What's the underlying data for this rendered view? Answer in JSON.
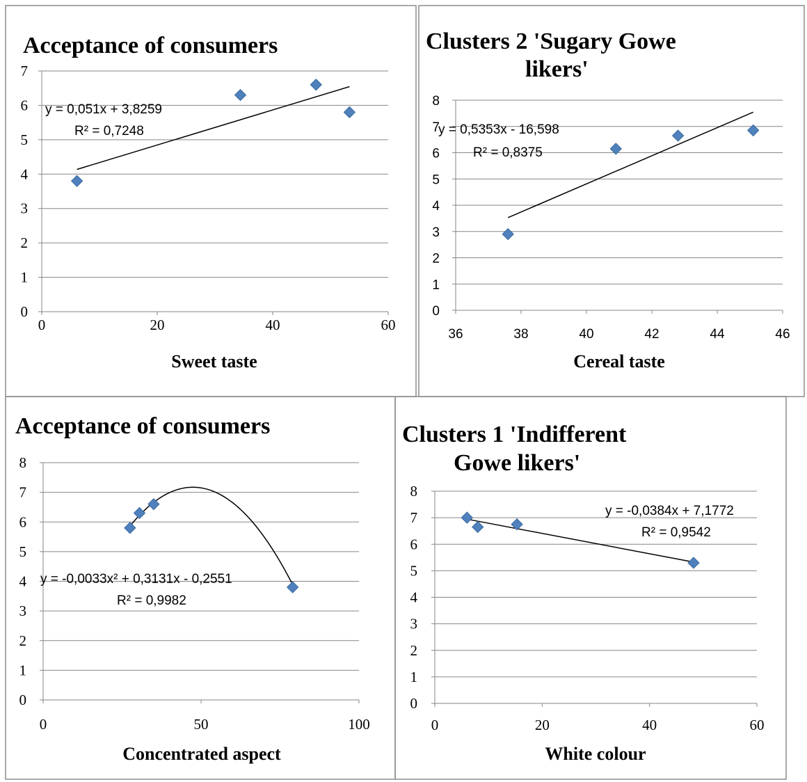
{
  "chart_data": [
    {
      "type": "scatter",
      "title": [
        "Acceptance of consumers"
      ],
      "xlabel": "Sweet taste",
      "ylabel": "",
      "xlim": [
        0,
        60
      ],
      "ylim": [
        0,
        7
      ],
      "xticks": [
        "0",
        "20",
        "40",
        "60"
      ],
      "yticks": [
        "0",
        "1",
        "2",
        "3",
        "4",
        "5",
        "6",
        "7"
      ],
      "grid": true,
      "points": [
        {
          "x": 6.1,
          "y": 3.8
        },
        {
          "x": 34.4,
          "y": 6.3
        },
        {
          "x": 47.5,
          "y": 6.6
        },
        {
          "x": 53.3,
          "y": 5.8
        }
      ],
      "trendline": {
        "type": "linear",
        "coef": [
          3.8259,
          0.051
        ],
        "xrange": [
          6.1,
          53.3
        ]
      },
      "equation": "y = 0,051x + 3,8259",
      "r2": "R² = 0,7248"
    },
    {
      "type": "scatter",
      "title": [
        "Clusters 2 'Sugary Gowe",
        "likers'"
      ],
      "xlabel": "Cereal taste",
      "ylabel": "",
      "xlim": [
        36,
        46
      ],
      "ylim": [
        0,
        8
      ],
      "xticks": [
        "36",
        "38",
        "40",
        "42",
        "44",
        "46"
      ],
      "yticks": [
        "0",
        "1",
        "2",
        "3",
        "4",
        "5",
        "6",
        "7",
        "8"
      ],
      "grid": true,
      "points": [
        {
          "x": 37.6,
          "y": 2.9
        },
        {
          "x": 40.9,
          "y": 6.15
        },
        {
          "x": 42.8,
          "y": 6.65
        },
        {
          "x": 45.1,
          "y": 6.85
        }
      ],
      "trendline": {
        "type": "linear",
        "coef": [
          -16.598,
          0.5353
        ],
        "xrange": [
          37.6,
          45.1
        ]
      },
      "equation": "y = 0,5353x - 16,598",
      "r2": "R² = 0,8375"
    },
    {
      "type": "scatter",
      "title": [
        "Acceptance of consumers"
      ],
      "xlabel": "Concentrated aspect",
      "ylabel": "",
      "xlim": [
        0,
        100
      ],
      "ylim": [
        0,
        8
      ],
      "xticks": [
        "0",
        "50",
        "100"
      ],
      "yticks": [
        "0",
        "1",
        "2",
        "3",
        "4",
        "5",
        "6",
        "7",
        "8"
      ],
      "grid": true,
      "points": [
        {
          "x": 27.5,
          "y": 5.8
        },
        {
          "x": 30.5,
          "y": 6.3
        },
        {
          "x": 35.0,
          "y": 6.6
        },
        {
          "x": 79.0,
          "y": 3.8
        }
      ],
      "trendline": {
        "type": "polynomial",
        "coef": [
          -0.2551,
          0.3131,
          -0.0033
        ],
        "xrange": [
          27.5,
          79.0
        ]
      },
      "equation": "y = -0,0033x² + 0,3131x - 0,2551",
      "r2": "R² = 0,9982"
    },
    {
      "type": "scatter",
      "title": [
        "Clusters 1 'Indifferent",
        "Gowe likers'"
      ],
      "xlabel": "White colour",
      "ylabel": "",
      "xlim": [
        0,
        60
      ],
      "ylim": [
        0,
        8
      ],
      "xticks": [
        "0",
        "20",
        "40",
        "60"
      ],
      "yticks": [
        "0",
        "1",
        "2",
        "3",
        "4",
        "5",
        "6",
        "7",
        "8"
      ],
      "grid": true,
      "points": [
        {
          "x": 6.0,
          "y": 7.0
        },
        {
          "x": 8.0,
          "y": 6.65
        },
        {
          "x": 15.3,
          "y": 6.75
        },
        {
          "x": 48.2,
          "y": 5.3
        }
      ],
      "trendline": {
        "type": "linear",
        "coef": [
          7.1772,
          -0.0384
        ],
        "xrange": [
          6.0,
          48.2
        ]
      },
      "equation": "y = -0,0384x + 7,1772",
      "r2": "R² = 0,9542"
    }
  ],
  "colors": {
    "marker": "#4f81bd",
    "marker_edge": "#3b6a9e",
    "grid": "#868686",
    "trendline": "#000000",
    "frame": "#8c8c8c"
  }
}
